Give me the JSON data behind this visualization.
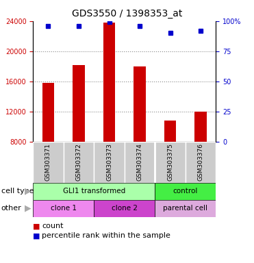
{
  "title": "GDS3550 / 1398353_at",
  "samples": [
    "GSM303371",
    "GSM303372",
    "GSM303373",
    "GSM303374",
    "GSM303375",
    "GSM303376"
  ],
  "counts": [
    15800,
    18200,
    23800,
    18000,
    10800,
    12000
  ],
  "percentile_ranks": [
    96,
    96,
    99,
    96,
    90,
    92
  ],
  "ylim_left": [
    8000,
    24000
  ],
  "ylim_right": [
    0,
    100
  ],
  "yticks_left": [
    8000,
    12000,
    16000,
    20000,
    24000
  ],
  "yticks_right": [
    0,
    25,
    50,
    75,
    100
  ],
  "bar_color": "#cc0000",
  "dot_color": "#0000cc",
  "grid_color": "#888888",
  "cell_type_row": {
    "label": "cell type",
    "groups": [
      {
        "text": "GLI1 transformed",
        "span": [
          0,
          3
        ],
        "color": "#aaffaa"
      },
      {
        "text": "control",
        "span": [
          4,
          5
        ],
        "color": "#44ee44"
      }
    ]
  },
  "other_row": {
    "label": "other",
    "groups": [
      {
        "text": "clone 1",
        "span": [
          0,
          1
        ],
        "color": "#ee88ee"
      },
      {
        "text": "clone 2",
        "span": [
          2,
          3
        ],
        "color": "#cc44cc"
      },
      {
        "text": "parental cell",
        "span": [
          4,
          5
        ],
        "color": "#ddaadd"
      }
    ]
  },
  "legend_count_color": "#cc0000",
  "legend_percentile_color": "#0000cc",
  "bar_width": 0.4,
  "sample_area_color": "#cccccc"
}
